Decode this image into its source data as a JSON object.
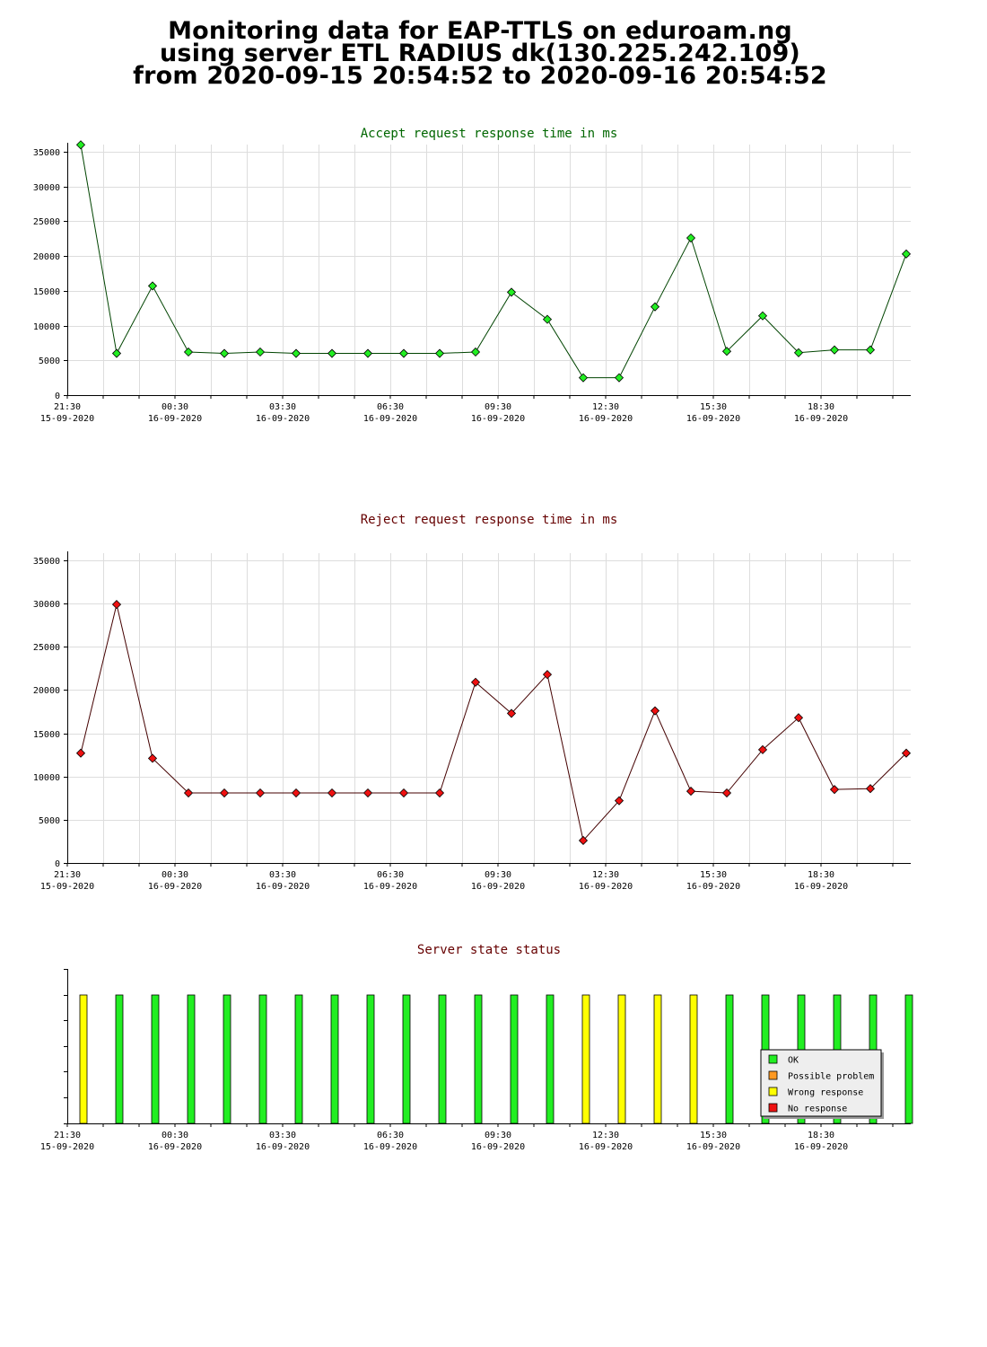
{
  "page": {
    "title_line1": "Monitoring data for EAP-TTLS on eduroam.ng",
    "title_line2": "using server ETL RADIUS dk(130.225.242.109)",
    "title_line3": "from 2020-09-15 20:54:52 to 2020-09-16 20:54:52"
  },
  "x_ticks": [
    {
      "time": "21:30",
      "date": "15-09-2020"
    },
    {
      "time": "00:30",
      "date": "16-09-2020"
    },
    {
      "time": "03:30",
      "date": "16-09-2020"
    },
    {
      "time": "06:30",
      "date": "16-09-2020"
    },
    {
      "time": "09:30",
      "date": "16-09-2020"
    },
    {
      "time": "12:30",
      "date": "16-09-2020"
    },
    {
      "time": "15:30",
      "date": "16-09-2020"
    },
    {
      "time": "18:30",
      "date": "16-09-2020"
    }
  ],
  "chart_data": [
    {
      "type": "line",
      "title": "Accept request response time in ms",
      "title_color": "#006600",
      "line_color": "#004400",
      "marker_color": "#22ee22",
      "ylim": [
        0,
        35000
      ],
      "yticks": [
        0,
        5000,
        10000,
        15000,
        20000,
        25000,
        30000,
        35000
      ],
      "grid": true,
      "values": [
        36000,
        6000,
        15700,
        6200,
        6000,
        6200,
        6000,
        6000,
        6000,
        6000,
        6000,
        6200,
        14800,
        10900,
        2500,
        2500,
        12700,
        22600,
        6300,
        11400,
        6100,
        6500,
        6500,
        20300
      ]
    },
    {
      "type": "line",
      "title": "Reject request response time in ms",
      "title_color": "#660000",
      "line_color": "#440000",
      "marker_color": "#ee1111",
      "ylim": [
        0,
        35000
      ],
      "yticks": [
        0,
        5000,
        10000,
        15000,
        20000,
        25000,
        30000,
        35000
      ],
      "grid": true,
      "values": [
        12700,
        29900,
        12100,
        8100,
        8100,
        8100,
        8100,
        8100,
        8100,
        8100,
        8100,
        20900,
        17300,
        21800,
        2600,
        7200,
        17600,
        8300,
        8100,
        13100,
        16800,
        8500,
        8600,
        12700
      ]
    },
    {
      "type": "bar",
      "title": "Server state status",
      "title_color": "#660000",
      "states": [
        "Wrong response",
        "OK",
        "OK",
        "OK",
        "OK",
        "OK",
        "OK",
        "OK",
        "OK",
        "OK",
        "OK",
        "OK",
        "OK",
        "OK",
        "Wrong response",
        "Wrong response",
        "Wrong response",
        "Wrong response",
        "OK",
        "OK",
        "OK",
        "OK",
        "OK",
        "OK"
      ],
      "legend": [
        {
          "label": "OK",
          "color": "#22ee22"
        },
        {
          "label": "Possible problem",
          "color": "#ff9922"
        },
        {
          "label": "Wrong response",
          "color": "#ffff00"
        },
        {
          "label": "No response",
          "color": "#ee1111"
        }
      ],
      "legend_position": "bottom-right"
    }
  ]
}
